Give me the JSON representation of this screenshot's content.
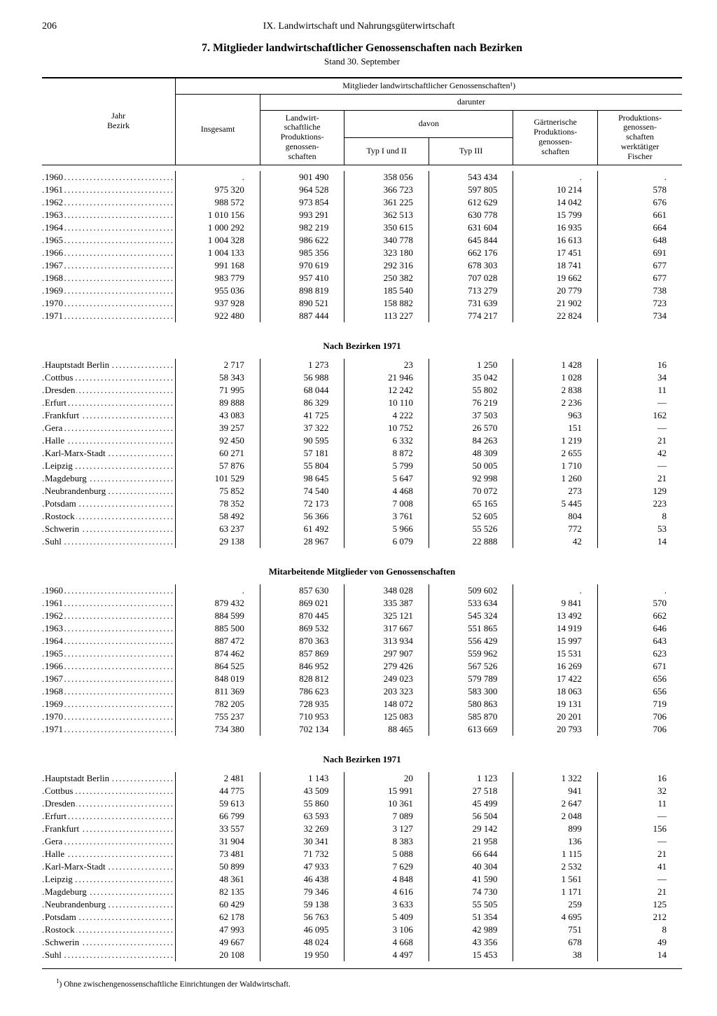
{
  "page_number": "206",
  "chapter": "IX. Landwirtschaft und Nahrungsgüterwirtschaft",
  "title": "7. Mitglieder landwirtschaftlicher Genossenschaften nach Bezirken",
  "subtitle": "Stand 30. September",
  "header": {
    "left": "Jahr\nBezirk",
    "group_top": "Mitglieder landwirtschaftlicher Genossenschaften¹)",
    "insgesamt": "Insgesamt",
    "darunter": "darunter",
    "lpg": "Landwirt-\nschaftliche\nProduktions-\ngenossen-\nschaften",
    "davon": "davon",
    "typ12": "Typ I und II",
    "typ3": "Typ III",
    "gpg": "Gärtnerische\nProduktions-\ngenossen-\nschaften",
    "fisch": "Produktions-\ngenossen-\nschaften\nwerktätiger\nFischer"
  },
  "section_titles": {
    "bezirke": "Nach Bezirken 1971",
    "mitarbeitende": "Mitarbeitende Mitglieder von Genossenschaften"
  },
  "footnote": "Ohne zwischengenossenschaftliche Einrichtungen der Waldwirtschaft.",
  "table1": [
    [
      "1960",
      ".",
      "901 490",
      "358 056",
      "543 434",
      ".",
      "."
    ],
    [
      "1961",
      "975 320",
      "964 528",
      "366 723",
      "597 805",
      "10 214",
      "578"
    ],
    [
      "1962",
      "988 572",
      "973 854",
      "361 225",
      "612 629",
      "14 042",
      "676"
    ],
    [
      "1963",
      "1 010 156",
      "993 291",
      "362 513",
      "630 778",
      "15 799",
      "661"
    ],
    [
      "1964",
      "1 000 292",
      "982 219",
      "350 615",
      "631 604",
      "16 935",
      "664"
    ],
    [
      "1965",
      "1 004 328",
      "986 622",
      "340 778",
      "645 844",
      "16 613",
      "648"
    ],
    [
      "1966",
      "1 004 133",
      "985 356",
      "323 180",
      "662 176",
      "17 451",
      "691"
    ],
    [
      "1967",
      "991 168",
      "970 619",
      "292 316",
      "678 303",
      "18 741",
      "677"
    ],
    [
      "1968",
      "983 779",
      "957 410",
      "250 382",
      "707 028",
      "19 662",
      "677"
    ],
    [
      "1969",
      "955 036",
      "898 819",
      "185 540",
      "713 279",
      "20 779",
      "738"
    ],
    [
      "1970",
      "937 928",
      "890 521",
      "158 882",
      "731 639",
      "21 902",
      "723"
    ],
    [
      "1971",
      "922 480",
      "887 444",
      "113 227",
      "774 217",
      "22 824",
      "734"
    ]
  ],
  "table2": [
    [
      "Hauptstadt Berlin",
      "2 717",
      "1 273",
      "23",
      "1 250",
      "1 428",
      "16"
    ],
    [
      "Cottbus",
      "58 343",
      "56 988",
      "21 946",
      "35 042",
      "1 028",
      "34"
    ],
    [
      "Dresden",
      "71 995",
      "68 044",
      "12 242",
      "55 802",
      "2 838",
      "11"
    ],
    [
      "Erfurt",
      "89 888",
      "86 329",
      "10 110",
      "76 219",
      "2 236",
      "—"
    ],
    [
      "Frankfurt",
      "43 083",
      "41 725",
      "4 222",
      "37 503",
      "963",
      "162"
    ],
    [
      "Gera",
      "39 257",
      "37 322",
      "10 752",
      "26 570",
      "151",
      "—"
    ],
    [
      "Halle",
      "92 450",
      "90 595",
      "6 332",
      "84 263",
      "1 219",
      "21"
    ],
    [
      "Karl-Marx-Stadt",
      "60 271",
      "57 181",
      "8 872",
      "48 309",
      "2 655",
      "42"
    ],
    [
      "Leipzig",
      "57 876",
      "55 804",
      "5 799",
      "50 005",
      "1 710",
      "—"
    ],
    [
      "Magdeburg",
      "101 529",
      "98 645",
      "5 647",
      "92 998",
      "1 260",
      "21"
    ],
    [
      "Neubrandenburg",
      "75 852",
      "74 540",
      "4 468",
      "70 072",
      "273",
      "129"
    ],
    [
      "Potsdam",
      "78 352",
      "72 173",
      "7 008",
      "65 165",
      "5 445",
      "223"
    ],
    [
      "Rostock",
      "58 492",
      "56 366",
      "3 761",
      "52 605",
      "804",
      "8"
    ],
    [
      "Schwerin",
      "63 237",
      "61 492",
      "5 966",
      "55 526",
      "772",
      "53"
    ],
    [
      "Suhl",
      "29 138",
      "28 967",
      "6 079",
      "22 888",
      "42",
      "14"
    ]
  ],
  "table3": [
    [
      "1960",
      ".",
      "857 630",
      "348 028",
      "509 602",
      ".",
      "."
    ],
    [
      "1961",
      "879 432",
      "869 021",
      "335 387",
      "533 634",
      "9 841",
      "570"
    ],
    [
      "1962",
      "884 599",
      "870 445",
      "325 121",
      "545 324",
      "13 492",
      "662"
    ],
    [
      "1963",
      "885 500",
      "869 532",
      "317 667",
      "551 865",
      "14 919",
      "646"
    ],
    [
      "1964",
      "887 472",
      "870 363",
      "313 934",
      "556 429",
      "15 997",
      "643"
    ],
    [
      "1965",
      "874 462",
      "857 869",
      "297 907",
      "559 962",
      "15 531",
      "623"
    ],
    [
      "1966",
      "864 525",
      "846 952",
      "279 426",
      "567 526",
      "16 269",
      "671"
    ],
    [
      "1967",
      "848 019",
      "828 812",
      "249 023",
      "579 789",
      "17 422",
      "656"
    ],
    [
      "1968",
      "811 369",
      "786 623",
      "203 323",
      "583 300",
      "18 063",
      "656"
    ],
    [
      "1969",
      "782 205",
      "728 935",
      "148 072",
      "580 863",
      "19 131",
      "719"
    ],
    [
      "1970",
      "755 237",
      "710 953",
      "125 083",
      "585 870",
      "20 201",
      "706"
    ],
    [
      "1971",
      "734 380",
      "702 134",
      "88 465",
      "613 669",
      "20 793",
      "706"
    ]
  ],
  "table4": [
    [
      "Hauptstadt Berlin",
      "2 481",
      "1 143",
      "20",
      "1 123",
      "1 322",
      "16"
    ],
    [
      "Cottbus",
      "44 775",
      "43 509",
      "15 991",
      "27 518",
      "941",
      "32"
    ],
    [
      "Dresden",
      "59 613",
      "55 860",
      "10 361",
      "45 499",
      "2 647",
      "11"
    ],
    [
      "Erfurt",
      "66 799",
      "63 593",
      "7 089",
      "56 504",
      "2 048",
      "—"
    ],
    [
      "Frankfurt",
      "33 557",
      "32 269",
      "3 127",
      "29 142",
      "899",
      "156"
    ],
    [
      "Gera",
      "31 904",
      "30 341",
      "8 383",
      "21 958",
      "136",
      "—"
    ],
    [
      "Halle",
      "73 481",
      "71 732",
      "5 088",
      "66 644",
      "1 115",
      "21"
    ],
    [
      "Karl-Marx-Stadt",
      "50 899",
      "47 933",
      "7 629",
      "40 304",
      "2 532",
      "41"
    ],
    [
      "Leipzig",
      "48 361",
      "46 438",
      "4 848",
      "41 590",
      "1 561",
      "—"
    ],
    [
      "Magdeburg",
      "82 135",
      "79 346",
      "4 616",
      "74 730",
      "1 171",
      "21"
    ],
    [
      "Neubrandenburg",
      "60 429",
      "59 138",
      "3 633",
      "55 505",
      "259",
      "125"
    ],
    [
      "Potsdam",
      "62 178",
      "56 763",
      "5 409",
      "51 354",
      "4 695",
      "212"
    ],
    [
      "Rostock",
      "47 993",
      "46 095",
      "3 106",
      "42 989",
      "751",
      "8"
    ],
    [
      "Schwerin",
      "49 667",
      "48 024",
      "4 668",
      "43 356",
      "678",
      "49"
    ],
    [
      "Suhl",
      "20 108",
      "19 950",
      "4 497",
      "15 453",
      "38",
      "14"
    ]
  ]
}
